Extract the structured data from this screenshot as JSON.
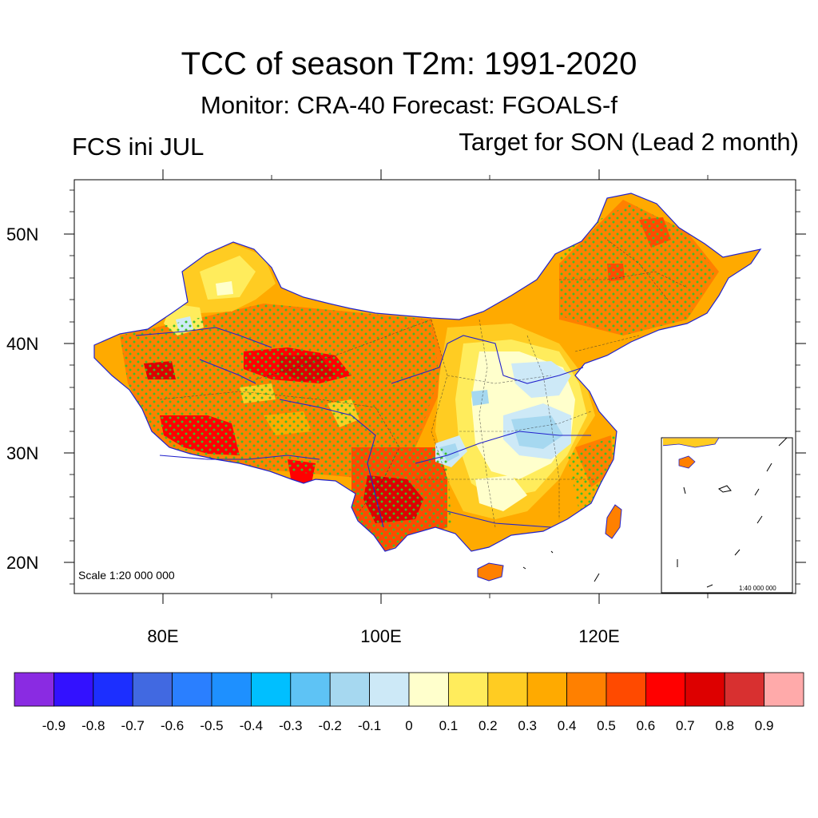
{
  "title": "TCC of season T2m: 1991-2020",
  "subtitle": "Monitor: CRA-40   Forecast: FGOALS-f",
  "left_label": "FCS ini JUL",
  "right_label": "Target for SON (Lead 2 month)",
  "scale_main": "Scale 1:20 000 000",
  "scale_inset": "1:40 000 000",
  "lat_labels": [
    "50N",
    "40N",
    "30N",
    "20N"
  ],
  "lon_labels": [
    "80E",
    "100E",
    "120E"
  ],
  "colorbar": {
    "colors": [
      "#8a2be2",
      "#3311ff",
      "#1c2fff",
      "#4169e1",
      "#2a7fff",
      "#1e90ff",
      "#00bfff",
      "#5ec3f5",
      "#a6d8f0",
      "#cde9f7",
      "#ffffcc",
      "#ffec5c",
      "#ffcc22",
      "#ffaa00",
      "#ff8000",
      "#ff4a00",
      "#ff0000",
      "#dd0000",
      "#d83030",
      "#ffaaaa"
    ],
    "labels": [
      "-0.9",
      "-0.8",
      "-0.7",
      "-0.6",
      "-0.5",
      "-0.4",
      "-0.3",
      "-0.2",
      "-0.1",
      "0",
      "0.1",
      "0.2",
      "0.3",
      "0.4",
      "0.5",
      "0.6",
      "0.7",
      "0.8",
      "0.9"
    ]
  },
  "stipple_color": "#3cbf2a",
  "boundary_color": "#2222cc"
}
